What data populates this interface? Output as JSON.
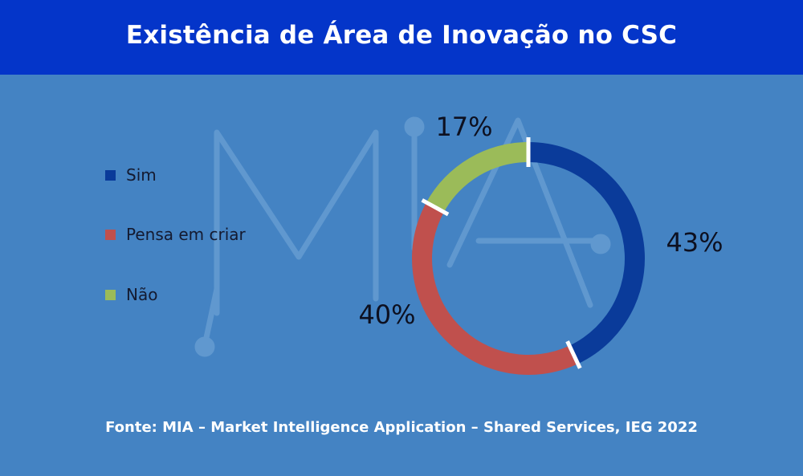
{
  "header": {
    "title": "Existência de Área de Inovação no CSC"
  },
  "colors": {
    "header_bg": "#0435c9",
    "page_bg": "#4483c3",
    "sim": "#0a3b9a",
    "pensa_em_criar": "#c0504d",
    "nao": "#9bbb59"
  },
  "chart_data": {
    "type": "pie",
    "variant": "donut",
    "title": "Existência de Área de Inovação no CSC",
    "legend_position": "left",
    "unit": "%",
    "series": [
      {
        "label": "Sim",
        "value": 43,
        "display": "43%",
        "color": "#0a3b9a"
      },
      {
        "label": "Pensa em criar",
        "value": 40,
        "display": "40%",
        "color": "#c0504d"
      },
      {
        "label": "Não",
        "value": 17,
        "display": "17%",
        "color": "#9bbb59"
      }
    ]
  },
  "source": {
    "text": "Fonte: MIA – Market Intelligence Application – Shared Services, IEG 2022"
  },
  "watermark": {
    "text": "MIA"
  }
}
